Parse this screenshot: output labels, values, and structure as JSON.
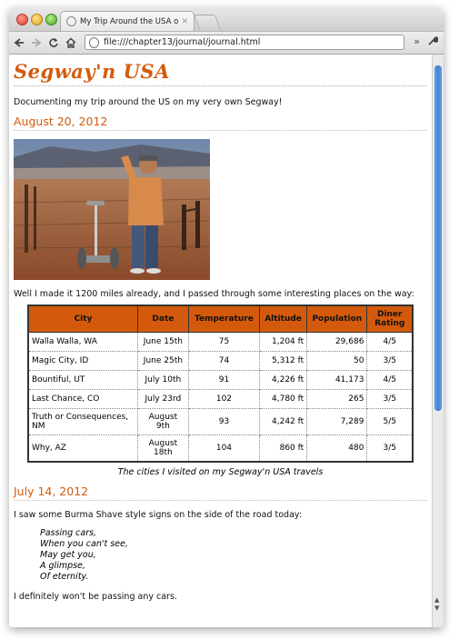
{
  "browser": {
    "tab_title": "My Trip Around the USA on a Segway",
    "tab_close": "✕",
    "url": "file:///chapter13/journal/journal.html"
  },
  "page": {
    "site_title": "Segway'n USA",
    "intro": "Documenting my trip around the US on my very own Segway!",
    "entry1": {
      "date": "August 20, 2012",
      "text": "Well I made it 1200 miles already, and I passed through some interesting places on the way:"
    },
    "table": {
      "headers": [
        "City",
        "Date",
        "Temperature",
        "Altitude",
        "Population",
        "Diner Rating"
      ],
      "rows": [
        [
          "Walla Walla, WA",
          "June 15th",
          "75",
          "1,204 ft",
          "29,686",
          "4/5"
        ],
        [
          "Magic City, ID",
          "June 25th",
          "74",
          "5,312 ft",
          "50",
          "3/5"
        ],
        [
          "Bountiful, UT",
          "July 10th",
          "91",
          "4,226 ft",
          "41,173",
          "4/5"
        ],
        [
          "Last Chance, CO",
          "July 23rd",
          "102",
          "4,780 ft",
          "265",
          "3/5"
        ],
        [
          "Truth or Consequences, NM",
          "August 9th",
          "93",
          "4,242 ft",
          "7,289",
          "5/5"
        ],
        [
          "Why, AZ",
          "August 18th",
          "104",
          "860 ft",
          "480",
          "3/5"
        ]
      ],
      "caption": "The cities I visited on my Segway'n USA travels"
    },
    "entry2": {
      "date": "July 14, 2012",
      "text": "I saw some Burma Shave style signs on the side of the road today:",
      "poem": [
        "Passing cars,",
        "When you can't see,",
        "May get you,",
        "A glimpse,",
        "Of eternity."
      ],
      "after": "I definitely won't be passing any cars."
    }
  },
  "colors": {
    "accent": "#d35a0c",
    "header_bg": "#d35a0c"
  }
}
